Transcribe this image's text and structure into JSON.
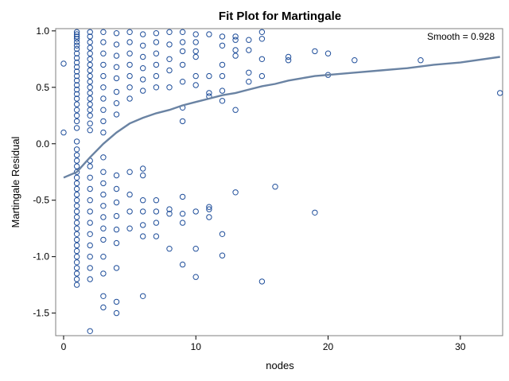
{
  "chart_data": {
    "type": "scatter",
    "title": "Fit Plot for Martingale",
    "xlabel": "nodes",
    "ylabel": "Martingale Residual",
    "annotation": "Smooth = 0.928",
    "xlim": [
      -0.6,
      33.2
    ],
    "ylim": [
      -1.7,
      1.02
    ],
    "x_ticks": [
      0,
      10,
      20,
      30
    ],
    "y_ticks": [
      -1.5,
      -1.0,
      -0.5,
      0.0,
      0.5,
      1.0
    ],
    "y_tick_labels": [
      "-1.5",
      "-1.0",
      "-0.5",
      "0.0",
      "0.5",
      "1.0"
    ],
    "grid": false,
    "legend": "none",
    "colors": {
      "points": "#1f4e9a",
      "smooth": "#6a83a3",
      "frame": "#7f7f7f"
    },
    "series": [
      {
        "type": "scatter",
        "points": [
          [
            0,
            0.71
          ],
          [
            0,
            0.1
          ],
          [
            1,
            0.99
          ],
          [
            1,
            0.97
          ],
          [
            1,
            0.95
          ],
          [
            1,
            0.93
          ],
          [
            1,
            0.9
          ],
          [
            1,
            0.87
          ],
          [
            1,
            0.84
          ],
          [
            1,
            0.8
          ],
          [
            1,
            0.76
          ],
          [
            1,
            0.72
          ],
          [
            1,
            0.68
          ],
          [
            1,
            0.64
          ],
          [
            1,
            0.6
          ],
          [
            1,
            0.56
          ],
          [
            1,
            0.52
          ],
          [
            1,
            0.48
          ],
          [
            1,
            0.44
          ],
          [
            1,
            0.4
          ],
          [
            1,
            0.35
          ],
          [
            1,
            0.3
          ],
          [
            1,
            0.25
          ],
          [
            1,
            0.2
          ],
          [
            1,
            0.14
          ],
          [
            1,
            0.02
          ],
          [
            1,
            -0.05
          ],
          [
            1,
            -0.1
          ],
          [
            1,
            -0.15
          ],
          [
            1,
            -0.2
          ],
          [
            1,
            -0.25
          ],
          [
            1,
            -0.3
          ],
          [
            1,
            -0.35
          ],
          [
            1,
            -0.4
          ],
          [
            1,
            -0.45
          ],
          [
            1,
            -0.5
          ],
          [
            1,
            -0.55
          ],
          [
            1,
            -0.6
          ],
          [
            1,
            -0.65
          ],
          [
            1,
            -0.7
          ],
          [
            1,
            -0.75
          ],
          [
            1,
            -0.8
          ],
          [
            1,
            -0.85
          ],
          [
            1,
            -0.9
          ],
          [
            1,
            -0.95
          ],
          [
            1,
            -1.0
          ],
          [
            1,
            -1.05
          ],
          [
            1,
            -1.1
          ],
          [
            1,
            -1.15
          ],
          [
            1,
            -1.2
          ],
          [
            1,
            -1.25
          ],
          [
            2,
            0.99
          ],
          [
            2,
            0.95
          ],
          [
            2,
            0.9
          ],
          [
            2,
            0.85
          ],
          [
            2,
            0.8
          ],
          [
            2,
            0.75
          ],
          [
            2,
            0.7
          ],
          [
            2,
            0.65
          ],
          [
            2,
            0.6
          ],
          [
            2,
            0.55
          ],
          [
            2,
            0.5
          ],
          [
            2,
            0.45
          ],
          [
            2,
            0.4
          ],
          [
            2,
            0.35
          ],
          [
            2,
            0.3
          ],
          [
            2,
            0.25
          ],
          [
            2,
            0.18
          ],
          [
            2,
            0.12
          ],
          [
            2,
            -0.15
          ],
          [
            2,
            -0.2
          ],
          [
            2,
            -0.3
          ],
          [
            2,
            -0.4
          ],
          [
            2,
            -0.5
          ],
          [
            2,
            -0.6
          ],
          [
            2,
            -0.7
          ],
          [
            2,
            -0.8
          ],
          [
            2,
            -0.9
          ],
          [
            2,
            -1.0
          ],
          [
            2,
            -1.1
          ],
          [
            2,
            -1.2
          ],
          [
            2,
            -1.66
          ],
          [
            3,
            0.99
          ],
          [
            3,
            0.9
          ],
          [
            3,
            0.8
          ],
          [
            3,
            0.7
          ],
          [
            3,
            0.6
          ],
          [
            3,
            0.5
          ],
          [
            3,
            0.4
          ],
          [
            3,
            0.3
          ],
          [
            3,
            0.2
          ],
          [
            3,
            0.1
          ],
          [
            3,
            -0.12
          ],
          [
            3,
            -0.25
          ],
          [
            3,
            -0.35
          ],
          [
            3,
            -0.45
          ],
          [
            3,
            -0.55
          ],
          [
            3,
            -0.65
          ],
          [
            3,
            -0.75
          ],
          [
            3,
            -0.85
          ],
          [
            3,
            -1.0
          ],
          [
            3,
            -1.15
          ],
          [
            3,
            -1.35
          ],
          [
            3,
            -1.45
          ],
          [
            4,
            0.98
          ],
          [
            4,
            0.88
          ],
          [
            4,
            0.78
          ],
          [
            4,
            0.68
          ],
          [
            4,
            0.58
          ],
          [
            4,
            0.46
          ],
          [
            4,
            0.36
          ],
          [
            4,
            0.26
          ],
          [
            4,
            -0.28
          ],
          [
            4,
            -0.4
          ],
          [
            4,
            -0.52
          ],
          [
            4,
            -0.64
          ],
          [
            4,
            -0.76
          ],
          [
            4,
            -0.88
          ],
          [
            4,
            -1.1
          ],
          [
            4,
            -1.4
          ],
          [
            4,
            -1.5
          ],
          [
            5,
            0.99
          ],
          [
            5,
            0.9
          ],
          [
            5,
            0.8
          ],
          [
            5,
            0.7
          ],
          [
            5,
            0.6
          ],
          [
            5,
            0.5
          ],
          [
            5,
            0.4
          ],
          [
            5,
            -0.25
          ],
          [
            5,
            -0.45
          ],
          [
            5,
            -0.6
          ],
          [
            5,
            -0.75
          ],
          [
            6,
            0.97
          ],
          [
            6,
            0.87
          ],
          [
            6,
            0.77
          ],
          [
            6,
            0.67
          ],
          [
            6,
            0.57
          ],
          [
            6,
            0.47
          ],
          [
            6,
            -0.22
          ],
          [
            6,
            -0.28
          ],
          [
            6,
            -0.5
          ],
          [
            6,
            -0.6
          ],
          [
            6,
            -0.72
          ],
          [
            6,
            -0.82
          ],
          [
            6,
            -1.35
          ],
          [
            7,
            0.98
          ],
          [
            7,
            0.9
          ],
          [
            7,
            0.8
          ],
          [
            7,
            0.7
          ],
          [
            7,
            0.6
          ],
          [
            7,
            0.5
          ],
          [
            7,
            -0.5
          ],
          [
            7,
            -0.6
          ],
          [
            7,
            -0.7
          ],
          [
            7,
            -0.82
          ],
          [
            8,
            0.99
          ],
          [
            8,
            0.88
          ],
          [
            8,
            0.75
          ],
          [
            8,
            0.65
          ],
          [
            8,
            0.5
          ],
          [
            8,
            -0.58
          ],
          [
            8,
            -0.62
          ],
          [
            8,
            -0.93
          ],
          [
            9,
            0.99
          ],
          [
            9,
            0.9
          ],
          [
            9,
            0.82
          ],
          [
            9,
            0.7
          ],
          [
            9,
            0.55
          ],
          [
            9,
            0.32
          ],
          [
            9,
            0.2
          ],
          [
            9,
            -0.47
          ],
          [
            9,
            -0.62
          ],
          [
            9,
            -0.7
          ],
          [
            9,
            -1.07
          ],
          [
            10,
            0.97
          ],
          [
            10,
            0.9
          ],
          [
            10,
            0.82
          ],
          [
            10,
            0.77
          ],
          [
            10,
            0.6
          ],
          [
            10,
            0.52
          ],
          [
            10,
            -0.6
          ],
          [
            10,
            -0.93
          ],
          [
            10,
            -1.18
          ],
          [
            11,
            0.97
          ],
          [
            11,
            0.6
          ],
          [
            11,
            0.45
          ],
          [
            11,
            0.42
          ],
          [
            11,
            -0.56
          ],
          [
            11,
            -0.58
          ],
          [
            11,
            -0.65
          ],
          [
            12,
            0.95
          ],
          [
            12,
            0.87
          ],
          [
            12,
            0.7
          ],
          [
            12,
            0.6
          ],
          [
            12,
            0.47
          ],
          [
            12,
            0.38
          ],
          [
            12,
            -0.8
          ],
          [
            12,
            -0.99
          ],
          [
            13,
            0.95
          ],
          [
            13,
            0.92
          ],
          [
            13,
            0.83
          ],
          [
            13,
            0.78
          ],
          [
            13,
            0.3
          ],
          [
            13,
            -0.43
          ],
          [
            14,
            0.92
          ],
          [
            14,
            0.83
          ],
          [
            14,
            0.63
          ],
          [
            14,
            0.55
          ],
          [
            15,
            0.99
          ],
          [
            15,
            0.93
          ],
          [
            15,
            0.75
          ],
          [
            15,
            0.6
          ],
          [
            15,
            -1.22
          ],
          [
            16,
            -0.38
          ],
          [
            17,
            0.77
          ],
          [
            17,
            0.74
          ],
          [
            19,
            0.82
          ],
          [
            19,
            -0.61
          ],
          [
            20,
            0.8
          ],
          [
            20,
            0.61
          ],
          [
            22,
            0.74
          ],
          [
            27,
            0.74
          ],
          [
            33,
            0.45
          ]
        ]
      },
      {
        "type": "line",
        "points": [
          [
            0,
            -0.3
          ],
          [
            1,
            -0.25
          ],
          [
            2,
            -0.12
          ],
          [
            3,
            0.0
          ],
          [
            4,
            0.1
          ],
          [
            5,
            0.18
          ],
          [
            6,
            0.23
          ],
          [
            7,
            0.27
          ],
          [
            8,
            0.3
          ],
          [
            9,
            0.34
          ],
          [
            10,
            0.37
          ],
          [
            11,
            0.4
          ],
          [
            12,
            0.43
          ],
          [
            13,
            0.45
          ],
          [
            14,
            0.48
          ],
          [
            15,
            0.51
          ],
          [
            16,
            0.53
          ],
          [
            17,
            0.56
          ],
          [
            18,
            0.58
          ],
          [
            19,
            0.6
          ],
          [
            20,
            0.61
          ],
          [
            22,
            0.63
          ],
          [
            24,
            0.65
          ],
          [
            26,
            0.67
          ],
          [
            28,
            0.7
          ],
          [
            30,
            0.72
          ],
          [
            33,
            0.77
          ]
        ]
      }
    ]
  }
}
